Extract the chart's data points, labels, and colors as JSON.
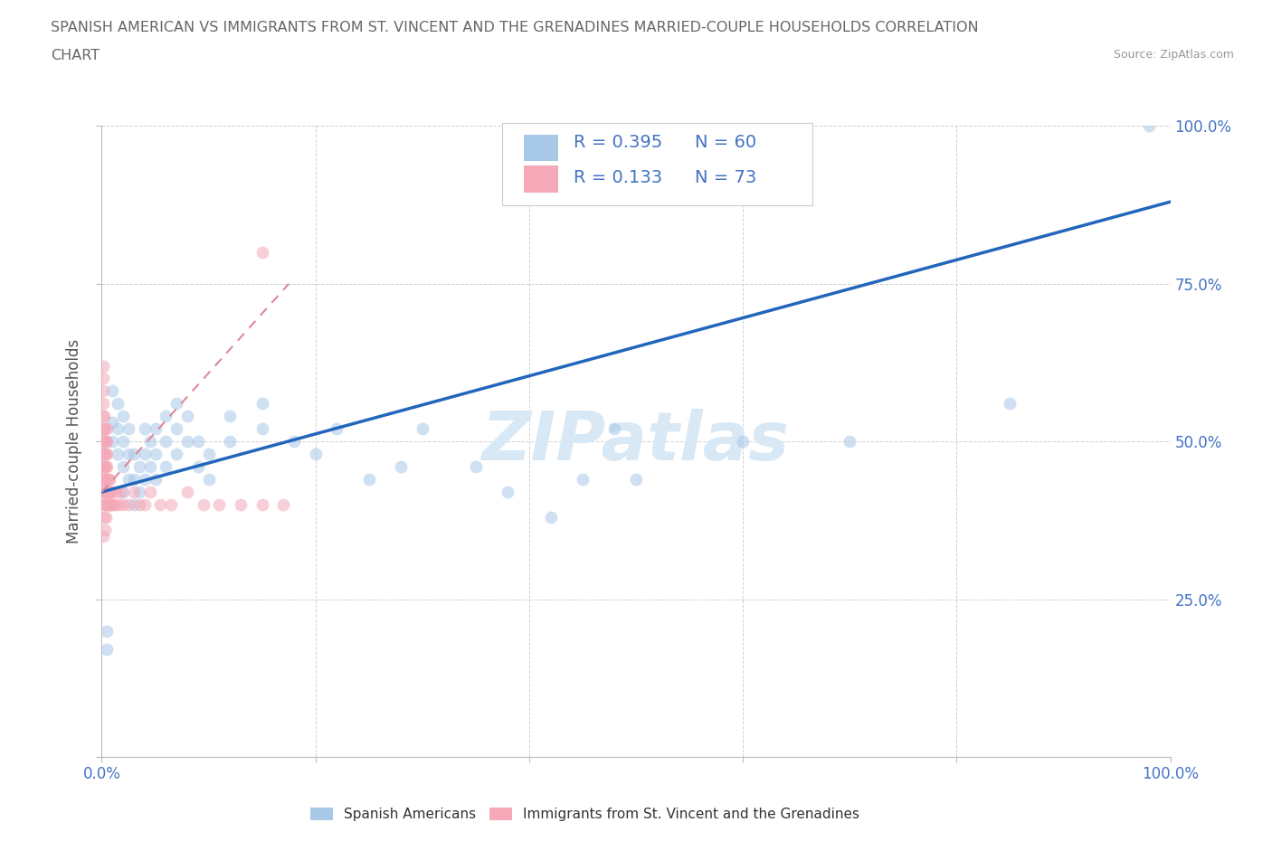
{
  "title_line1": "SPANISH AMERICAN VS IMMIGRANTS FROM ST. VINCENT AND THE GRENADINES MARRIED-COUPLE HOUSEHOLDS CORRELATION",
  "title_line2": "CHART",
  "source_text": "Source: ZipAtlas.com",
  "ylabel": "Married-couple Households",
  "xmin": 0.0,
  "xmax": 1.0,
  "ymin": 0.0,
  "ymax": 1.0,
  "x_ticks": [
    0.0,
    0.2,
    0.4,
    0.6,
    0.8,
    1.0
  ],
  "y_ticks": [
    0.0,
    0.25,
    0.5,
    0.75,
    1.0
  ],
  "legend_R1": "0.395",
  "legend_N1": "60",
  "legend_R2": "0.133",
  "legend_N2": "73",
  "color_blue": "#a8c8e8",
  "color_pink": "#f4a8b8",
  "line_blue": "#2266bb",
  "line_pink": "#dd8899",
  "watermark_color": "#d8e8f4",
  "grid_color": "#cccccc",
  "title_color": "#666666",
  "ylabel_color": "#555555",
  "tick_label_color": "#4472c4",
  "legend_text_color": "#4472c4",
  "source_color": "#999999",
  "title_fontsize": 11.5,
  "legend_fontsize": 14,
  "marker_size": 100,
  "marker_alpha": 0.55,
  "blue_scatter_x": [
    0.005,
    0.005,
    0.01,
    0.01,
    0.01,
    0.015,
    0.015,
    0.015,
    0.02,
    0.02,
    0.02,
    0.02,
    0.025,
    0.025,
    0.025,
    0.03,
    0.03,
    0.03,
    0.035,
    0.035,
    0.04,
    0.04,
    0.04,
    0.045,
    0.045,
    0.05,
    0.05,
    0.05,
    0.06,
    0.06,
    0.06,
    0.07,
    0.07,
    0.07,
    0.08,
    0.08,
    0.09,
    0.09,
    0.1,
    0.1,
    0.12,
    0.12,
    0.15,
    0.15,
    0.18,
    0.2,
    0.22,
    0.25,
    0.28,
    0.3,
    0.35,
    0.38,
    0.42,
    0.45,
    0.48,
    0.5,
    0.6,
    0.7,
    0.85,
    0.98
  ],
  "blue_scatter_y": [
    0.2,
    0.17,
    0.5,
    0.53,
    0.58,
    0.48,
    0.52,
    0.56,
    0.42,
    0.46,
    0.5,
    0.54,
    0.44,
    0.48,
    0.52,
    0.4,
    0.44,
    0.48,
    0.42,
    0.46,
    0.44,
    0.48,
    0.52,
    0.46,
    0.5,
    0.44,
    0.48,
    0.52,
    0.46,
    0.5,
    0.54,
    0.48,
    0.52,
    0.56,
    0.5,
    0.54,
    0.46,
    0.5,
    0.44,
    0.48,
    0.5,
    0.54,
    0.52,
    0.56,
    0.5,
    0.48,
    0.52,
    0.44,
    0.46,
    0.52,
    0.46,
    0.42,
    0.38,
    0.44,
    0.52,
    0.44,
    0.5,
    0.5,
    0.56,
    1.0
  ],
  "pink_scatter_x": [
    0.001,
    0.001,
    0.001,
    0.001,
    0.001,
    0.001,
    0.001,
    0.001,
    0.001,
    0.001,
    0.001,
    0.002,
    0.002,
    0.002,
    0.002,
    0.002,
    0.002,
    0.002,
    0.002,
    0.003,
    0.003,
    0.003,
    0.003,
    0.003,
    0.003,
    0.003,
    0.004,
    0.004,
    0.004,
    0.004,
    0.004,
    0.004,
    0.005,
    0.005,
    0.005,
    0.005,
    0.005,
    0.005,
    0.005,
    0.006,
    0.006,
    0.006,
    0.007,
    0.007,
    0.007,
    0.008,
    0.008,
    0.009,
    0.01,
    0.01,
    0.012,
    0.014,
    0.016,
    0.018,
    0.02,
    0.025,
    0.03,
    0.035,
    0.04,
    0.045,
    0.055,
    0.065,
    0.08,
    0.095,
    0.11,
    0.13,
    0.15,
    0.17,
    0.001,
    0.002,
    0.003,
    0.004,
    0.15
  ],
  "pink_scatter_y": [
    0.42,
    0.44,
    0.46,
    0.48,
    0.5,
    0.52,
    0.54,
    0.56,
    0.58,
    0.6,
    0.62,
    0.4,
    0.42,
    0.44,
    0.46,
    0.48,
    0.5,
    0.52,
    0.54,
    0.4,
    0.42,
    0.44,
    0.46,
    0.48,
    0.5,
    0.52,
    0.4,
    0.42,
    0.44,
    0.46,
    0.48,
    0.5,
    0.4,
    0.42,
    0.44,
    0.46,
    0.48,
    0.5,
    0.52,
    0.4,
    0.42,
    0.44,
    0.4,
    0.42,
    0.44,
    0.4,
    0.42,
    0.4,
    0.4,
    0.42,
    0.4,
    0.42,
    0.4,
    0.42,
    0.4,
    0.4,
    0.42,
    0.4,
    0.4,
    0.42,
    0.4,
    0.4,
    0.42,
    0.4,
    0.4,
    0.4,
    0.4,
    0.4,
    0.35,
    0.38,
    0.36,
    0.38,
    0.8
  ],
  "blue_line_x": [
    0.0,
    1.0
  ],
  "blue_line_y": [
    0.42,
    0.88
  ],
  "pink_line_x": [
    0.0,
    0.175
  ],
  "pink_line_y": [
    0.42,
    0.75
  ]
}
